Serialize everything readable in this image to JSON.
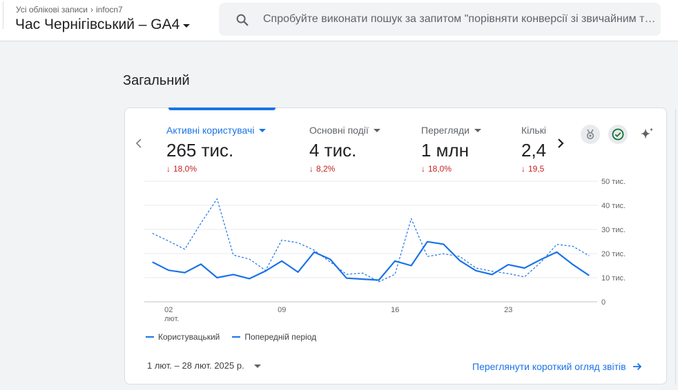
{
  "header": {
    "breadcrumb_root": "Усі облікові записи",
    "breadcrumb_account": "infocn7",
    "property_name": "Час Чернігівський – GA4",
    "search_placeholder": "Спробуйте виконати пошук за запитом \"порівняти конверсії зі звичайним трафіком\""
  },
  "section": {
    "title": "Загальний"
  },
  "metrics": [
    {
      "name": "Активні користувачі",
      "value": "265 тис.",
      "delta": "18,0%",
      "direction": "down",
      "active": true
    },
    {
      "name": "Основні події",
      "value": "4 тис.",
      "delta": "8,2%",
      "direction": "down",
      "active": false
    },
    {
      "name": "Перегляди",
      "value": "1 млн",
      "delta": "18,0%",
      "direction": "down",
      "active": false
    },
    {
      "name": "Кількі",
      "value": "2,4",
      "delta": "19,5",
      "direction": "down",
      "active": false
    }
  ],
  "icons": {
    "prev": "chevron-left-icon",
    "next": "chevron-right-icon",
    "insights": "medal-icon",
    "status": "check-circle-icon",
    "ai": "sparkle-icon",
    "search": "search-icon"
  },
  "chart_data": {
    "type": "line",
    "x": [
      "01",
      "02",
      "03",
      "04",
      "05",
      "06",
      "07",
      "08",
      "09",
      "10",
      "11",
      "12",
      "13",
      "14",
      "15",
      "16",
      "17",
      "18",
      "19",
      "20",
      "21",
      "22",
      "23",
      "24",
      "25",
      "26",
      "27",
      "28"
    ],
    "x_tick_labels": [
      {
        "day": "02",
        "label": "02",
        "sublabel": "лют."
      },
      {
        "day": "09",
        "label": "09",
        "sublabel": ""
      },
      {
        "day": "16",
        "label": "16",
        "sublabel": ""
      },
      {
        "day": "23",
        "label": "23",
        "sublabel": ""
      }
    ],
    "y_ticks": [
      "0",
      "10 тис.",
      "20 тис.",
      "30 тис.",
      "40 тис.",
      "50 тис."
    ],
    "ylim": [
      0,
      50000
    ],
    "series": [
      {
        "name": "Користувацький",
        "style": "solid",
        "values": [
          16500,
          13100,
          12100,
          15600,
          10000,
          11300,
          9600,
          12800,
          16900,
          12300,
          20600,
          17600,
          9800,
          9400,
          9000,
          16900,
          15000,
          24900,
          23900,
          17100,
          12900,
          11300,
          15400,
          14000,
          17500,
          20600,
          15400,
          10900
        ]
      },
      {
        "name": "Попередній період",
        "style": "dashed",
        "values": [
          28400,
          25200,
          21800,
          32600,
          42700,
          19400,
          17700,
          13000,
          25600,
          24500,
          21400,
          16500,
          11400,
          11900,
          8300,
          11400,
          34500,
          18800,
          19900,
          18800,
          14000,
          12700,
          11700,
          10300,
          16300,
          23800,
          23000,
          19100
        ]
      }
    ],
    "grid": true,
    "legend_position": "bottom-left",
    "color": "#1a73e8"
  },
  "footer": {
    "date_range": "1 лют. – 28 лют. 2025 р.",
    "report_link": "Переглянути короткий огляд звітів"
  }
}
